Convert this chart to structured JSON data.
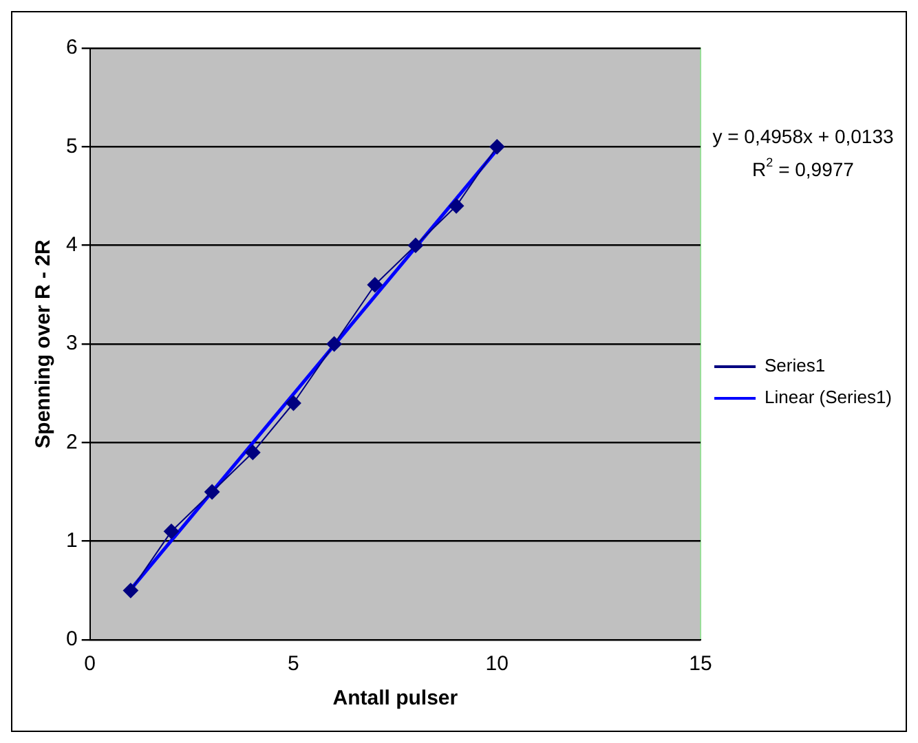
{
  "chart_data": {
    "type": "line",
    "xlabel": "Antall pulser",
    "ylabel": "Spenning over R - 2R",
    "xlim": [
      0,
      15
    ],
    "xticks": [
      0,
      5,
      10,
      15
    ],
    "ylim": [
      0,
      6
    ],
    "yticks": [
      0,
      1,
      2,
      3,
      4,
      5,
      6
    ],
    "grid": "y",
    "legend": "right",
    "annotations": [
      "y = 0,4958x + 0,0133",
      "R$^{2}$ = 0,9977"
    ],
    "series": [
      {
        "name": "Series1",
        "color": "#000080",
        "marker": "diamond",
        "x": [
          1,
          2,
          3,
          4,
          5,
          6,
          7,
          8,
          9,
          10
        ],
        "values": [
          0.5,
          1.1,
          1.5,
          1.9,
          2.4,
          3.0,
          3.6,
          4.0,
          4.4,
          5.0
        ]
      },
      {
        "name": "Linear (Series1)",
        "type": "line",
        "color": "#0000ff",
        "marker": "none",
        "x": [
          1,
          10
        ],
        "values": [
          0.51,
          4.97
        ]
      }
    ]
  }
}
